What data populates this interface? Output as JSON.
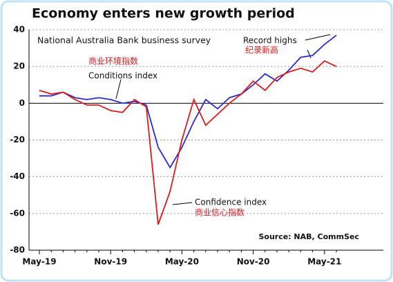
{
  "chart_data": {
    "type": "line",
    "title": "Economy enters new growth period",
    "subtitle": "National Australia Bank business survey",
    "categories": [
      "May-19",
      null,
      null,
      null,
      null,
      null,
      "Nov-19",
      null,
      null,
      null,
      null,
      null,
      "May-20",
      null,
      null,
      null,
      null,
      null,
      "Nov-20",
      null,
      null,
      null,
      null,
      null,
      "May-21",
      null
    ],
    "series": [
      {
        "name": "Conditions index",
        "color": "#2b2bd6",
        "values": [
          4,
          4,
          6,
          3,
          2,
          3,
          2,
          0,
          1,
          -1,
          -24,
          -35,
          -24,
          -10,
          2,
          -3,
          3,
          5,
          10,
          16,
          12,
          18,
          25,
          26,
          32,
          37
        ]
      },
      {
        "name": "Confidence index",
        "color": "#e0191b",
        "values": [
          7,
          5,
          6,
          2,
          -1,
          -1,
          -4,
          -5,
          2,
          -2,
          -66,
          -48,
          -20,
          2,
          -12,
          -6,
          0,
          5,
          12,
          7,
          14,
          17,
          19,
          17,
          23,
          20
        ]
      }
    ],
    "annotations": [
      "商业环境指数",
      "Conditions index",
      "商业信心指数",
      "Record highs",
      "纪录新高"
    ],
    "source": "Source: NAB, CommSec",
    "ylim": [
      -80,
      40
    ],
    "yticks": [
      -80,
      -60,
      -40,
      -20,
      0,
      20,
      40
    ],
    "grid": true
  }
}
